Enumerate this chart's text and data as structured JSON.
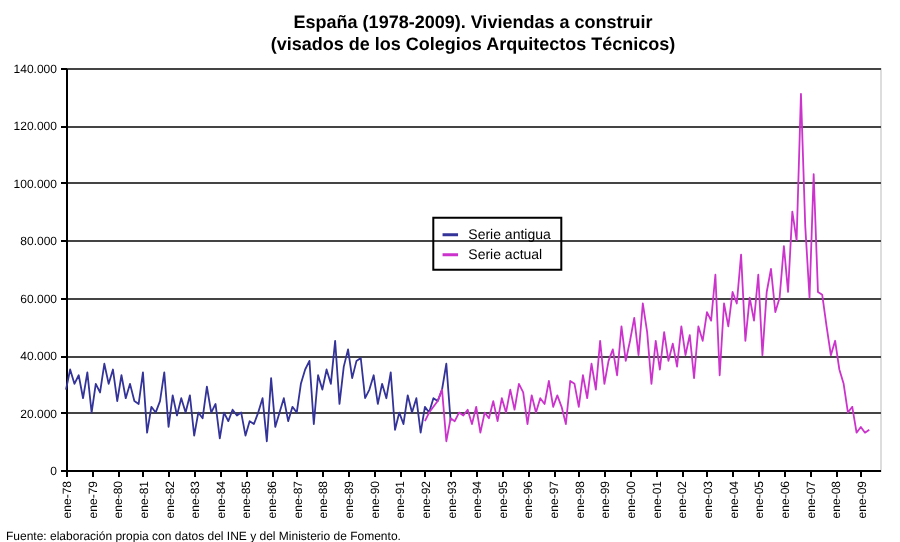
{
  "chart_data": {
    "type": "line",
    "title": [
      "España (1978-2009). Viviendas a construir",
      "(visados de los Colegios Arquitectos Técnicos)"
    ],
    "annotations": [
      "Fuente: elaboración propia con datos del INE y del Ministerio de Fomento."
    ],
    "xlim": [
      "1978-01",
      "2009-10"
    ],
    "xticks": [
      {
        "value": "1978-01",
        "label": "ene-78"
      },
      {
        "value": "1979-01",
        "label": "ene-79"
      },
      {
        "value": "1980-01",
        "label": "ene-80"
      },
      {
        "value": "1981-01",
        "label": "ene-81"
      },
      {
        "value": "1982-01",
        "label": "ene-82"
      },
      {
        "value": "1983-01",
        "label": "ene-83"
      },
      {
        "value": "1984-01",
        "label": "ene-84"
      },
      {
        "value": "1985-01",
        "label": "ene-85"
      },
      {
        "value": "1986-01",
        "label": "ene-86"
      },
      {
        "value": "1987-01",
        "label": "ene-87"
      },
      {
        "value": "1988-01",
        "label": "ene-88"
      },
      {
        "value": "1989-01",
        "label": "ene-89"
      },
      {
        "value": "1990-01",
        "label": "ene-90"
      },
      {
        "value": "1991-01",
        "label": "ene-91"
      },
      {
        "value": "1992-01",
        "label": "ene-92"
      },
      {
        "value": "1993-01",
        "label": "ene-93"
      },
      {
        "value": "1994-01",
        "label": "ene-94"
      },
      {
        "value": "1995-01",
        "label": "ene-95"
      },
      {
        "value": "1996-01",
        "label": "ene-96"
      },
      {
        "value": "1997-01",
        "label": "ene-97"
      },
      {
        "value": "1998-01",
        "label": "ene-98"
      },
      {
        "value": "1999-01",
        "label": "ene-99"
      },
      {
        "value": "2000-01",
        "label": "ene-00"
      },
      {
        "value": "2001-01",
        "label": "ene-01"
      },
      {
        "value": "2002-01",
        "label": "ene-02"
      },
      {
        "value": "2003-01",
        "label": "ene-03"
      },
      {
        "value": "2004-01",
        "label": "ene-04"
      },
      {
        "value": "2005-01",
        "label": "ene-05"
      },
      {
        "value": "2006-01",
        "label": "ene-06"
      },
      {
        "value": "2007-01",
        "label": "ene-07"
      },
      {
        "value": "2008-01",
        "label": "ene-08"
      },
      {
        "value": "2009-01",
        "label": "ene-09"
      }
    ],
    "ylim": [
      0,
      140000
    ],
    "yticks": [
      {
        "value": 0,
        "label": "0"
      },
      {
        "value": 20000,
        "label": "20.000"
      },
      {
        "value": 40000,
        "label": "40.000"
      },
      {
        "value": 60000,
        "label": "60.000"
      },
      {
        "value": 80000,
        "label": "80.000"
      },
      {
        "value": 100000,
        "label": "100.000"
      },
      {
        "value": 120000,
        "label": "120.000"
      },
      {
        "value": 140000,
        "label": "140.000"
      }
    ],
    "grid": "y",
    "legend": "center",
    "marker": "none",
    "line_style": "solid",
    "series": [
      {
        "name": "Serie antigua",
        "color": "#333399",
        "x": [
          "1978-01",
          "1978-03",
          "1978-05",
          "1978-07",
          "1978-09",
          "1978-11",
          "1979-01",
          "1979-03",
          "1979-05",
          "1979-07",
          "1979-09",
          "1979-11",
          "1980-01",
          "1980-03",
          "1980-05",
          "1980-07",
          "1980-09",
          "1980-11",
          "1981-01",
          "1981-03",
          "1981-05",
          "1981-07",
          "1981-09",
          "1981-11",
          "1982-01",
          "1982-03",
          "1982-05",
          "1982-07",
          "1982-09",
          "1982-11",
          "1983-01",
          "1983-03",
          "1983-05",
          "1983-07",
          "1983-09",
          "1983-11",
          "1984-01",
          "1984-03",
          "1984-05",
          "1984-07",
          "1984-09",
          "1984-11",
          "1985-01",
          "1985-03",
          "1985-05",
          "1985-07",
          "1985-09",
          "1985-11",
          "1986-01",
          "1986-03",
          "1986-05",
          "1986-07",
          "1986-09",
          "1986-11",
          "1987-01",
          "1987-03",
          "1987-05",
          "1987-07",
          "1987-09",
          "1987-11",
          "1988-01",
          "1988-03",
          "1988-05",
          "1988-07",
          "1988-09",
          "1988-11",
          "1989-01",
          "1989-03",
          "1989-05",
          "1989-07",
          "1989-09",
          "1989-11",
          "1990-01",
          "1990-03",
          "1990-05",
          "1990-07",
          "1990-09",
          "1990-11",
          "1991-01",
          "1991-03",
          "1991-05",
          "1991-07",
          "1991-09",
          "1991-11",
          "1992-01",
          "1992-03",
          "1992-05",
          "1992-07",
          "1992-09",
          "1992-11",
          "1993-01"
        ],
        "values": [
          28000,
          35000,
          30000,
          33000,
          25000,
          34000,
          20000,
          30000,
          27000,
          37000,
          30000,
          35000,
          24000,
          33000,
          25000,
          30000,
          24000,
          23000,
          34000,
          13000,
          22000,
          20000,
          24000,
          34000,
          15000,
          26000,
          19000,
          25000,
          20000,
          26000,
          12000,
          20000,
          18000,
          29000,
          20000,
          23000,
          11000,
          20000,
          17000,
          21000,
          19000,
          20000,
          12000,
          17000,
          16000,
          20000,
          25000,
          10000,
          32000,
          15000,
          20000,
          25000,
          17000,
          22000,
          20000,
          30000,
          35000,
          38000,
          16000,
          33000,
          28000,
          35000,
          30000,
          45000,
          23000,
          36000,
          42000,
          32000,
          38000,
          39000,
          25000,
          28000,
          33000,
          23000,
          30000,
          25000,
          34000,
          14000,
          20000,
          16000,
          26000,
          20000,
          25000,
          13000,
          22000,
          20000,
          25000,
          24000,
          28000,
          37000,
          17000
        ]
      },
      {
        "name": "Serie actual",
        "color": "#cc33cc",
        "x": [
          "1992-01",
          "1992-03",
          "1992-05",
          "1992-07",
          "1992-09",
          "1992-11",
          "1993-01",
          "1993-03",
          "1993-05",
          "1993-07",
          "1993-09",
          "1993-11",
          "1994-01",
          "1994-03",
          "1994-05",
          "1994-07",
          "1994-09",
          "1994-11",
          "1995-01",
          "1995-03",
          "1995-05",
          "1995-07",
          "1995-09",
          "1995-11",
          "1996-01",
          "1996-03",
          "1996-05",
          "1996-07",
          "1996-09",
          "1996-11",
          "1997-01",
          "1997-03",
          "1997-05",
          "1997-07",
          "1997-09",
          "1997-11",
          "1998-01",
          "1998-03",
          "1998-05",
          "1998-07",
          "1998-09",
          "1998-11",
          "1999-01",
          "1999-03",
          "1999-05",
          "1999-07",
          "1999-09",
          "1999-11",
          "2000-01",
          "2000-03",
          "2000-05",
          "2000-07",
          "2000-09",
          "2000-11",
          "2001-01",
          "2001-03",
          "2001-05",
          "2001-07",
          "2001-09",
          "2001-11",
          "2002-01",
          "2002-03",
          "2002-05",
          "2002-07",
          "2002-09",
          "2002-11",
          "2003-01",
          "2003-03",
          "2003-05",
          "2003-07",
          "2003-09",
          "2003-11",
          "2004-01",
          "2004-03",
          "2004-05",
          "2004-07",
          "2004-09",
          "2004-11",
          "2005-01",
          "2005-03",
          "2005-05",
          "2005-07",
          "2005-09",
          "2005-11",
          "2006-01",
          "2006-03",
          "2006-05",
          "2006-07",
          "2006-09",
          "2006-11",
          "2007-01",
          "2007-03",
          "2007-05",
          "2007-07",
          "2007-09",
          "2007-11",
          "2008-01",
          "2008-03",
          "2008-05",
          "2008-07",
          "2008-09",
          "2008-11",
          "2009-01",
          "2009-03",
          "2009-05"
        ],
        "values": [
          17000,
          20000,
          22000,
          24000,
          28000,
          10000,
          18000,
          17000,
          20000,
          19000,
          21000,
          16000,
          22000,
          13000,
          20000,
          18000,
          24000,
          17000,
          25000,
          20000,
          28000,
          21000,
          30000,
          27000,
          16000,
          26000,
          20000,
          25000,
          23000,
          31000,
          22000,
          26000,
          22000,
          16000,
          31000,
          30000,
          22000,
          33000,
          25000,
          37000,
          28000,
          45000,
          30000,
          38000,
          42000,
          33000,
          50000,
          38000,
          45000,
          53000,
          40000,
          58000,
          48000,
          30000,
          45000,
          35000,
          48000,
          38000,
          44000,
          36000,
          50000,
          40000,
          47000,
          32000,
          50000,
          45000,
          55000,
          52000,
          68000,
          33000,
          58000,
          50000,
          62000,
          58000,
          75000,
          45000,
          60000,
          52000,
          68000,
          40000,
          62000,
          70000,
          55000,
          60000,
          78000,
          62000,
          90000,
          80000,
          131000,
          85000,
          60000,
          103000,
          62000,
          61000,
          50000,
          40000,
          45000,
          35000,
          30000,
          20000,
          22000,
          13000,
          15000,
          13000,
          14000
        ]
      }
    ]
  }
}
